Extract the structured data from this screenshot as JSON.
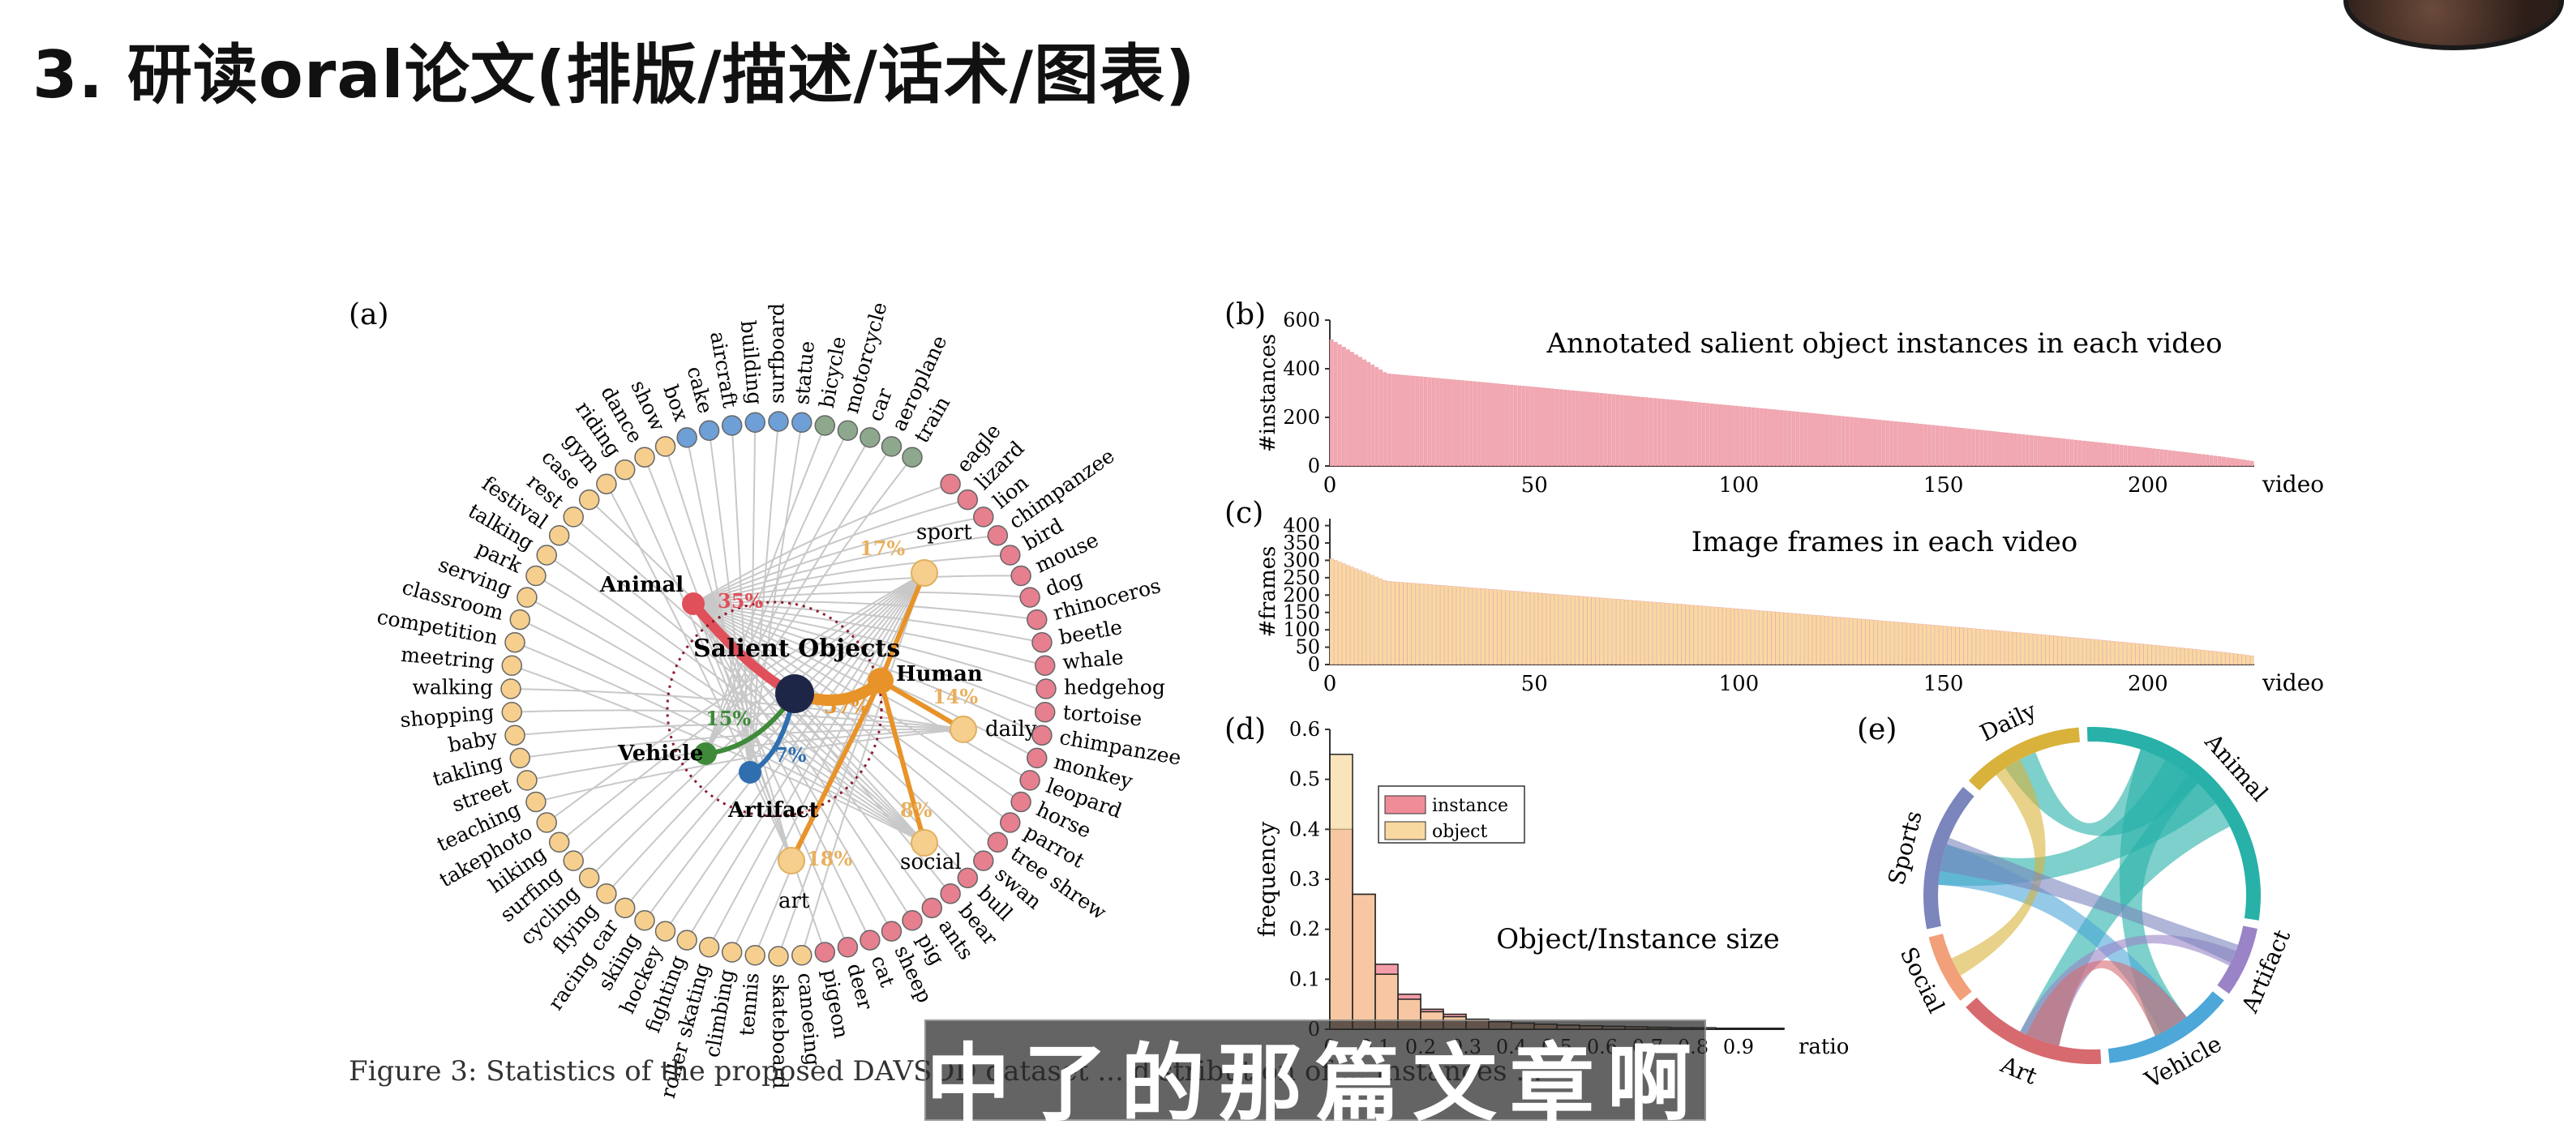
{
  "slide": {
    "title": "3. 研读oral论文(排版/描述/话术/图表)"
  },
  "subtitle": "中了的那篇文章啊",
  "caption": "Figure 3: Statistics of the proposed DAVSOD dataset ... distribution of ... instances ...",
  "panel_labels": {
    "a": "(a)",
    "b": "(b)",
    "c": "(c)",
    "d": "(d)",
    "e": "(e)"
  },
  "panel_a": {
    "center": "Salient Objects",
    "hubs": [
      {
        "key": "animal",
        "label": "Animal",
        "percent": "35%",
        "color": "#e0505a"
      },
      {
        "key": "human",
        "label": "Human",
        "percent": "57%",
        "color": "#e8932a"
      },
      {
        "key": "vehicle",
        "label": "Vehicle",
        "percent": "15%",
        "color": "#3f8a3a"
      },
      {
        "key": "artifact",
        "label": "Artifact",
        "percent": "7%",
        "color": "#2f6fb0"
      }
    ],
    "subhubs": [
      {
        "label": "sport",
        "percent": "17%"
      },
      {
        "label": "daily",
        "percent": "14%"
      },
      {
        "label": "social",
        "percent": "8%"
      },
      {
        "label": "art",
        "percent": "18%"
      }
    ],
    "leaves": [
      {
        "label": "eagle",
        "group": "animal"
      },
      {
        "label": "lizard",
        "group": "animal"
      },
      {
        "label": "lion",
        "group": "animal"
      },
      {
        "label": "chimpanzee",
        "group": "animal"
      },
      {
        "label": "bird",
        "group": "animal"
      },
      {
        "label": "mouse",
        "group": "animal"
      },
      {
        "label": "dog",
        "group": "animal"
      },
      {
        "label": "rhinoceros",
        "group": "animal"
      },
      {
        "label": "beetle",
        "group": "animal"
      },
      {
        "label": "whale",
        "group": "animal"
      },
      {
        "label": "hedgehog",
        "group": "animal"
      },
      {
        "label": "tortoise",
        "group": "animal"
      },
      {
        "label": "chimpanzee",
        "group": "animal"
      },
      {
        "label": "monkey",
        "group": "animal"
      },
      {
        "label": "leopard",
        "group": "animal"
      },
      {
        "label": "horse",
        "group": "animal"
      },
      {
        "label": "parrot",
        "group": "animal"
      },
      {
        "label": "tree shrew",
        "group": "animal"
      },
      {
        "label": "swan",
        "group": "animal"
      },
      {
        "label": "bull",
        "group": "animal"
      },
      {
        "label": "bear",
        "group": "animal"
      },
      {
        "label": "ants",
        "group": "animal"
      },
      {
        "label": "pig",
        "group": "animal"
      },
      {
        "label": "sheep",
        "group": "animal"
      },
      {
        "label": "cat",
        "group": "animal"
      },
      {
        "label": "deer",
        "group": "animal"
      },
      {
        "label": "pigeon",
        "group": "animal"
      },
      {
        "label": "canoeing",
        "group": "human"
      },
      {
        "label": "skateboard",
        "group": "human"
      },
      {
        "label": "tennis",
        "group": "human"
      },
      {
        "label": "climbing",
        "group": "human"
      },
      {
        "label": "roller skating",
        "group": "human"
      },
      {
        "label": "fighting",
        "group": "human"
      },
      {
        "label": "hockey",
        "group": "human"
      },
      {
        "label": "skiing",
        "group": "human"
      },
      {
        "label": "racing car",
        "group": "human"
      },
      {
        "label": "flying",
        "group": "human"
      },
      {
        "label": "cycling",
        "group": "human"
      },
      {
        "label": "surfing",
        "group": "human"
      },
      {
        "label": "hiking",
        "group": "human"
      },
      {
        "label": "takephoto",
        "group": "human"
      },
      {
        "label": "teaching",
        "group": "human"
      },
      {
        "label": "street",
        "group": "human"
      },
      {
        "label": "takling",
        "group": "human"
      },
      {
        "label": "baby",
        "group": "human"
      },
      {
        "label": "shopping",
        "group": "human"
      },
      {
        "label": "walking",
        "group": "human"
      },
      {
        "label": "meetring",
        "group": "human"
      },
      {
        "label": "competition",
        "group": "human"
      },
      {
        "label": "classroom",
        "group": "human"
      },
      {
        "label": "serving",
        "group": "human"
      },
      {
        "label": "park",
        "group": "human"
      },
      {
        "label": "talking",
        "group": "human"
      },
      {
        "label": "festival",
        "group": "human"
      },
      {
        "label": "rest",
        "group": "human"
      },
      {
        "label": "case",
        "group": "human"
      },
      {
        "label": "gym",
        "group": "human"
      },
      {
        "label": "riding",
        "group": "human"
      },
      {
        "label": "dance",
        "group": "human"
      },
      {
        "label": "show",
        "group": "human"
      },
      {
        "label": "box",
        "group": "artifact"
      },
      {
        "label": "cake",
        "group": "artifact"
      },
      {
        "label": "aircraft",
        "group": "artifact"
      },
      {
        "label": "building",
        "group": "artifact"
      },
      {
        "label": "surfboard",
        "group": "artifact"
      },
      {
        "label": "statue",
        "group": "artifact"
      },
      {
        "label": "bicycle",
        "group": "vehicle"
      },
      {
        "label": "motorcycle",
        "group": "vehicle"
      },
      {
        "label": "car",
        "group": "vehicle"
      },
      {
        "label": "aeroplane",
        "group": "vehicle"
      },
      {
        "label": "train",
        "group": "vehicle"
      }
    ],
    "colors": {
      "animal_leaf": "#e67f8e",
      "human_leaf": "#f6cf8e",
      "artifact_leaf": "#6e9fd6",
      "vehicle_leaf": "#8ea88e",
      "center": "#1e2647"
    }
  },
  "chart_data": [
    {
      "id": "b",
      "type": "bar",
      "title": "Annotated salient object instances in each video",
      "xlabel": "video",
      "ylabel": "#instances",
      "xlim": [
        0,
        226
      ],
      "ylim": [
        0,
        600
      ],
      "xticks": [
        "0",
        "50",
        "100",
        "150",
        "200"
      ],
      "yticks": [
        "0",
        "200",
        "400",
        "600"
      ],
      "n": 226,
      "curve": {
        "start": 520,
        "knee": 380,
        "end": 20
      },
      "color": "#f2a7b1"
    },
    {
      "id": "c",
      "type": "bar",
      "title": "Image frames in each video",
      "xlabel": "video",
      "ylabel": "#frames",
      "xlim": [
        0,
        226
      ],
      "ylim": [
        0,
        420
      ],
      "xticks": [
        "0",
        "50",
        "100",
        "150",
        "200"
      ],
      "yticks": [
        "0",
        "50",
        "100",
        "150",
        "200",
        "250",
        "300",
        "350",
        "400"
      ],
      "n": 226,
      "curve": {
        "start": 305,
        "knee": 240,
        "end": 25
      },
      "color": "#f8d9a0"
    },
    {
      "id": "d",
      "type": "bar",
      "title": "Object/Instance size",
      "xlabel": "ratio",
      "ylabel": "frequency",
      "xlim": [
        0,
        1.0
      ],
      "ylim": [
        0,
        0.6
      ],
      "xticks": [
        "0",
        "0.1",
        "0.2",
        "0.3",
        "0.4",
        "0.5",
        "0.6",
        "0.7",
        "0.8",
        "0.9"
      ],
      "yticks": [
        "0",
        "0.1",
        "0.2",
        "0.3",
        "0.4",
        "0.5",
        "0.6"
      ],
      "bin_width": 0.05,
      "series": [
        {
          "name": "instance",
          "color": "#f08c98",
          "values": [
            0.4,
            0.27,
            0.13,
            0.07,
            0.04,
            0.03,
            0.02,
            0.015,
            0.012,
            0.01,
            0.008,
            0.006,
            0.005,
            0.004,
            0.003,
            0.003,
            0.002,
            0.002,
            0.002,
            0.001
          ]
        },
        {
          "name": "object",
          "color": "#f8d9a0",
          "values": [
            0.55,
            0.27,
            0.11,
            0.06,
            0.035,
            0.025,
            0.02,
            0.015,
            0.012,
            0.01,
            0.008,
            0.007,
            0.006,
            0.005,
            0.004,
            0.003,
            0.003,
            0.002,
            0.002,
            0.002
          ]
        }
      ],
      "legend_position": "top-left"
    },
    {
      "id": "e",
      "type": "chord",
      "groups": [
        {
          "label": "Animal",
          "color": "#27b1a8",
          "weight": 33
        },
        {
          "label": "Artifact",
          "color": "#9a83c6",
          "weight": 8
        },
        {
          "label": "Vehicle",
          "color": "#4da7d8",
          "weight": 15
        },
        {
          "label": "Art",
          "color": "#d76a6f",
          "weight": 17
        },
        {
          "label": "Social",
          "color": "#f2a07a",
          "weight": 8
        },
        {
          "label": "Sports",
          "color": "#7a86bc",
          "weight": 17
        },
        {
          "label": "Daily",
          "color": "#d8b23a",
          "weight": 14
        }
      ]
    }
  ]
}
